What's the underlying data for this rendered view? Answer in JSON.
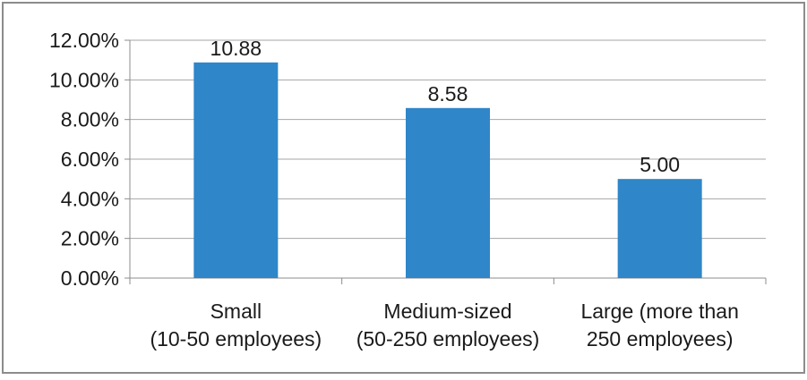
{
  "chart_data": {
    "type": "bar",
    "categories": [
      [
        "Small",
        "(10-50 employees)"
      ],
      [
        "Medium-sized",
        "(50-250 employees)"
      ],
      [
        "Large (more than",
        "250 employees)"
      ]
    ],
    "values": [
      10.88,
      8.58,
      5.0
    ],
    "data_labels": [
      "10.88",
      "8.58",
      "5.00"
    ],
    "yticks": [
      0,
      2,
      4,
      6,
      8,
      10,
      12
    ],
    "ytick_labels": [
      "0.00%",
      "2.00%",
      "4.00%",
      "6.00%",
      "8.00%",
      "10.00%",
      "12.00%"
    ],
    "ylim": [
      0,
      12
    ],
    "grid": true,
    "legend": "none",
    "title": "",
    "xlabel": "",
    "ylabel": "",
    "colors": {
      "bar": "#2f86c9",
      "grid": "#a6a6a6",
      "axis": "#8c8c8c",
      "frame": "#8c8c8c"
    }
  }
}
